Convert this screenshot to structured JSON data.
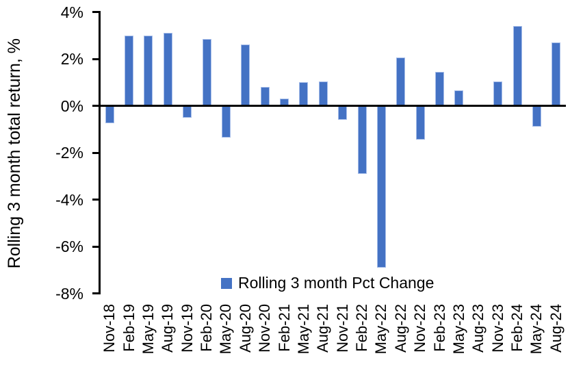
{
  "chart_data": {
    "type": "bar",
    "title": "",
    "xlabel": "",
    "ylabel": "Rolling 3 month total return, %",
    "legend_label": "Rolling 3 month Pct Change",
    "legend_position": "bottom-center-inside",
    "categories": [
      "Nov-18",
      "Feb-19",
      "May-19",
      "Aug-19",
      "Nov-19",
      "Feb-20",
      "May-20",
      "Aug-20",
      "Nov-20",
      "Feb-21",
      "May-21",
      "Aug-21",
      "Nov-21",
      "Feb-22",
      "May-22",
      "Aug-22",
      "Nov-22",
      "Feb-23",
      "May-23",
      "Aug-23",
      "Nov-23",
      "Feb-24",
      "May-24",
      "Aug-24"
    ],
    "values": [
      -0.75,
      3.0,
      3.0,
      3.1,
      -0.5,
      2.85,
      -1.35,
      2.6,
      0.8,
      0.3,
      1.0,
      1.05,
      -0.6,
      -2.9,
      -6.9,
      2.05,
      -1.45,
      1.45,
      0.65,
      0.0,
      1.05,
      3.4,
      -0.9,
      2.7
    ],
    "ylim": [
      -8,
      4
    ],
    "ytick_values": [
      4,
      2,
      0,
      -2,
      -4,
      -6,
      -8
    ],
    "ytick_labels": [
      "4%",
      "2%",
      "0%",
      "-2%",
      "-4%",
      "-6%",
      "-8%"
    ],
    "grid": false,
    "bar_color": "#4472C4",
    "bar_border_color": "#A6BDE9",
    "axis_color": "#000000",
    "background": "#FFFFFF"
  }
}
